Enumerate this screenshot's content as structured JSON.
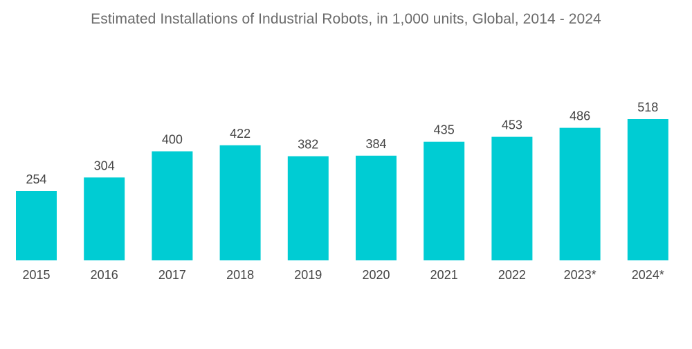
{
  "chart_data": {
    "type": "bar",
    "title": "Estimated Installations of Industrial Robots, in 1,000 units, Global, 2014 - 2024",
    "xlabel": "",
    "ylabel": "",
    "categories": [
      "2015",
      "2016",
      "2017",
      "2018",
      "2019",
      "2020",
      "2021",
      "2022",
      "2023*",
      "2024*"
    ],
    "values": [
      254,
      304,
      400,
      422,
      382,
      384,
      435,
      453,
      486,
      518
    ],
    "data_labels": [
      "254",
      "304",
      "400",
      "422",
      "382",
      "384",
      "435",
      "453",
      "486",
      "518"
    ],
    "ylim": [
      0,
      518
    ],
    "grid": false,
    "bar_color": "#00CCD3"
  }
}
